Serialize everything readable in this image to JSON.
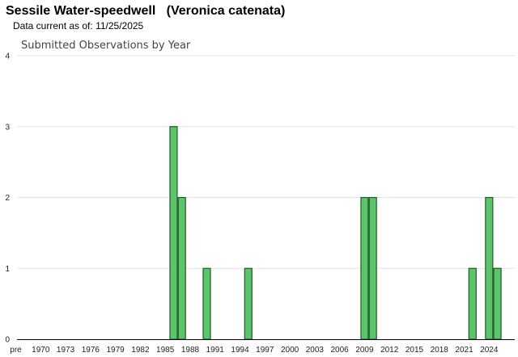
{
  "header": {
    "species_common": "Sessile Water-speedwell",
    "species_latin": "(Veronica catenata)",
    "data_current_label": "Data current as of:",
    "data_current_date": "11/25/2025"
  },
  "colors": {
    "bar_fill": "#5cc46a",
    "bar_stroke": "#1f5c24",
    "gridline": "#e3e3e3",
    "axis": "#000000"
  },
  "chart_data": {
    "type": "bar",
    "title": "Submitted Observations by Year",
    "xlabel": "",
    "ylabel": "",
    "ylim": [
      0,
      4
    ],
    "yticks": [
      0,
      1,
      2,
      3,
      4
    ],
    "grid": true,
    "x_domain": [
      1967,
      2026
    ],
    "x_tick_labels": [
      {
        "label": "pre",
        "x": 1967
      },
      {
        "label": "1970",
        "x": 1970
      },
      {
        "label": "1973",
        "x": 1973
      },
      {
        "label": "1976",
        "x": 1976
      },
      {
        "label": "1979",
        "x": 1979
      },
      {
        "label": "1982",
        "x": 1982
      },
      {
        "label": "1985",
        "x": 1985
      },
      {
        "label": "1988",
        "x": 1988
      },
      {
        "label": "1991",
        "x": 1991
      },
      {
        "label": "1994",
        "x": 1994
      },
      {
        "label": "1997",
        "x": 1997
      },
      {
        "label": "2000",
        "x": 2000
      },
      {
        "label": "2003",
        "x": 2003
      },
      {
        "label": "2006",
        "x": 2006
      },
      {
        "label": "2009",
        "x": 2009
      },
      {
        "label": "2012",
        "x": 2012
      },
      {
        "label": "2015",
        "x": 2015
      },
      {
        "label": "2018",
        "x": 2018
      },
      {
        "label": "2021",
        "x": 2021
      },
      {
        "label": "2024",
        "x": 2024
      }
    ],
    "series": [
      {
        "points": [
          {
            "year": 1986,
            "count": 3
          },
          {
            "year": 1987,
            "count": 2
          },
          {
            "year": 1990,
            "count": 1
          },
          {
            "year": 1995,
            "count": 1
          },
          {
            "year": 2009,
            "count": 2
          },
          {
            "year": 2010,
            "count": 2
          },
          {
            "year": 2022,
            "count": 1
          },
          {
            "year": 2024,
            "count": 2
          },
          {
            "year": 2025,
            "count": 1
          }
        ]
      }
    ]
  }
}
